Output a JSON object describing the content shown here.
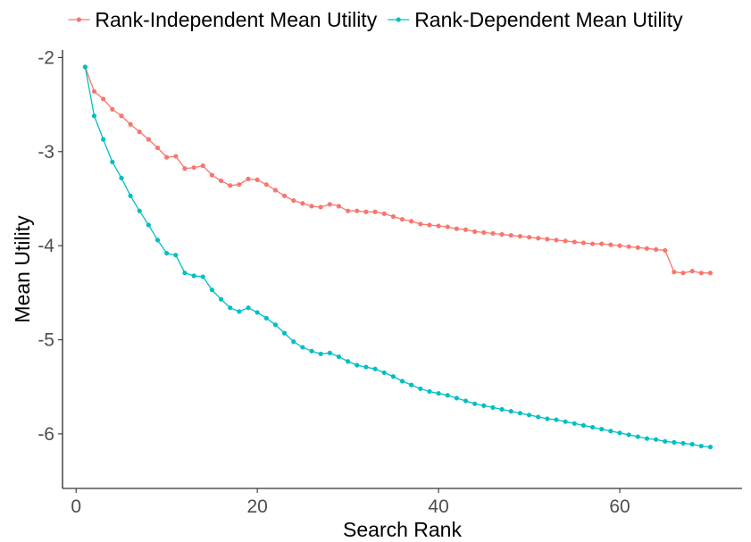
{
  "chart_data": {
    "type": "line",
    "title": "",
    "xlabel": "Search Rank",
    "ylabel": "Mean Utility",
    "xlim": [
      -1.5,
      73.5
    ],
    "ylim": [
      -6.58,
      -1.92
    ],
    "xticks": [
      0,
      20,
      40,
      60
    ],
    "xtick_labels": [
      "0",
      "20",
      "40",
      "60"
    ],
    "yticks": [
      -2,
      -3,
      -4,
      -5,
      -6
    ],
    "ytick_labels": [
      "-2",
      "-3",
      "-4",
      "-5",
      "-6"
    ],
    "grid": false,
    "legend_position": "top",
    "x": [
      1,
      2,
      3,
      4,
      5,
      6,
      7,
      8,
      9,
      10,
      11,
      12,
      13,
      14,
      15,
      16,
      17,
      18,
      19,
      20,
      21,
      22,
      23,
      24,
      25,
      26,
      27,
      28,
      29,
      30,
      31,
      32,
      33,
      34,
      35,
      36,
      37,
      38,
      39,
      40,
      41,
      42,
      43,
      44,
      45,
      46,
      47,
      48,
      49,
      50,
      51,
      52,
      53,
      54,
      55,
      56,
      57,
      58,
      59,
      60,
      61,
      62,
      63,
      64,
      65,
      66,
      67,
      68,
      69,
      70
    ],
    "series": [
      {
        "name": "Rank-Independent Mean Utility",
        "color": "#f8766d",
        "values": [
          -2.1,
          -2.36,
          -2.44,
          -2.55,
          -2.62,
          -2.71,
          -2.79,
          -2.87,
          -2.96,
          -3.06,
          -3.05,
          -3.18,
          -3.17,
          -3.15,
          -3.25,
          -3.31,
          -3.36,
          -3.35,
          -3.29,
          -3.3,
          -3.35,
          -3.41,
          -3.47,
          -3.52,
          -3.55,
          -3.58,
          -3.59,
          -3.56,
          -3.58,
          -3.63,
          -3.63,
          -3.64,
          -3.64,
          -3.66,
          -3.69,
          -3.72,
          -3.74,
          -3.77,
          -3.78,
          -3.79,
          -3.8,
          -3.82,
          -3.83,
          -3.85,
          -3.86,
          -3.87,
          -3.88,
          -3.89,
          -3.9,
          -3.91,
          -3.92,
          -3.93,
          -3.94,
          -3.95,
          -3.96,
          -3.97,
          -3.98,
          -3.98,
          -3.99,
          -4.0,
          -4.01,
          -4.02,
          -4.03,
          -4.04,
          -4.05,
          -4.28,
          -4.29,
          -4.27,
          -4.29,
          -4.29
        ]
      },
      {
        "name": "Rank-Dependent Mean Utility",
        "color": "#00bfc4",
        "values": [
          -2.1,
          -2.62,
          -2.87,
          -3.11,
          -3.28,
          -3.47,
          -3.63,
          -3.78,
          -3.94,
          -4.08,
          -4.1,
          -4.29,
          -4.32,
          -4.33,
          -4.47,
          -4.57,
          -4.66,
          -4.7,
          -4.66,
          -4.71,
          -4.77,
          -4.84,
          -4.93,
          -5.02,
          -5.08,
          -5.12,
          -5.15,
          -5.14,
          -5.18,
          -5.23,
          -5.27,
          -5.29,
          -5.31,
          -5.35,
          -5.39,
          -5.44,
          -5.48,
          -5.52,
          -5.55,
          -5.57,
          -5.59,
          -5.62,
          -5.65,
          -5.68,
          -5.7,
          -5.72,
          -5.74,
          -5.76,
          -5.78,
          -5.8,
          -5.82,
          -5.84,
          -5.85,
          -5.87,
          -5.89,
          -5.91,
          -5.93,
          -5.95,
          -5.97,
          -5.99,
          -6.01,
          -6.03,
          -6.05,
          -6.06,
          -6.08,
          -6.09,
          -6.1,
          -6.11,
          -6.13,
          -6.14
        ]
      }
    ]
  }
}
